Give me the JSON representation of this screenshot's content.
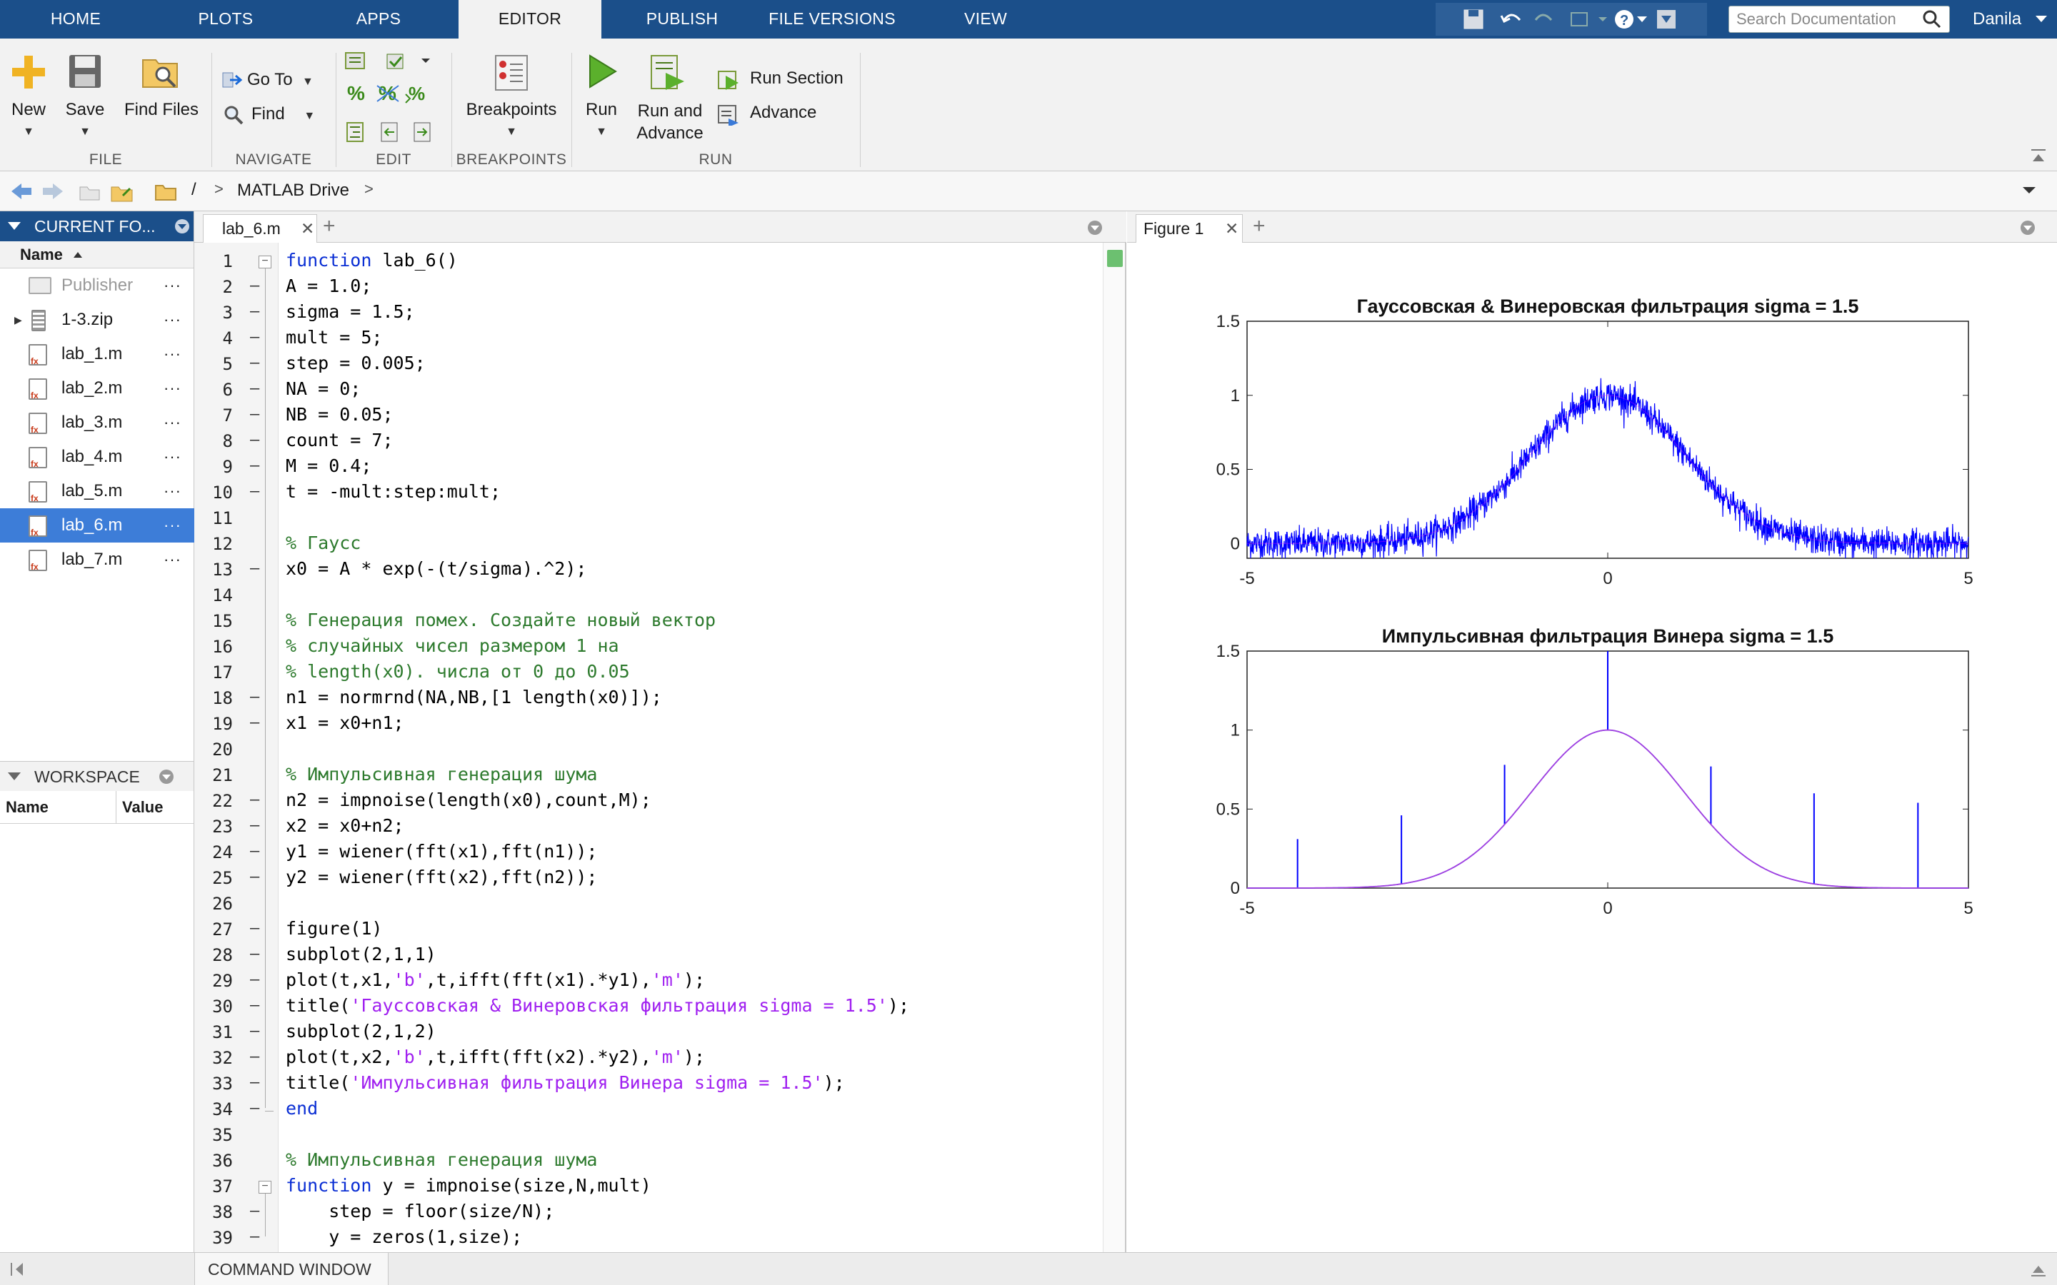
{
  "top_tabs": [
    "HOME",
    "PLOTS",
    "APPS",
    "EDITOR",
    "PUBLISH",
    "FILE VERSIONS",
    "VIEW"
  ],
  "search": {
    "placeholder": "Search Documentation"
  },
  "user": "Danila",
  "ribbon": {
    "file": {
      "new": "New",
      "save": "Save",
      "find_files": "Find Files",
      "label": "FILE"
    },
    "navigate": {
      "goto": "Go To",
      "find": "Find",
      "label": "NAVIGATE"
    },
    "edit": {
      "label": "EDIT"
    },
    "breakpoints": {
      "btn": "Breakpoints",
      "label": "BREAKPOINTS"
    },
    "run": {
      "run": "Run",
      "run_adv_1": "Run and",
      "run_adv_2": "Advance",
      "run_section": "Run Section",
      "advance": "Advance",
      "label": "RUN"
    }
  },
  "address": {
    "root": "/",
    "sep": ">",
    "folder": "MATLAB Drive"
  },
  "current_folder": {
    "title": "CURRENT FO...",
    "col_name": "Name",
    "files": [
      {
        "name": "Publisher",
        "type": "folder"
      },
      {
        "name": "1-3.zip",
        "type": "zip"
      },
      {
        "name": "lab_1.m",
        "type": "m"
      },
      {
        "name": "lab_2.m",
        "type": "m"
      },
      {
        "name": "lab_3.m",
        "type": "m"
      },
      {
        "name": "lab_4.m",
        "type": "m"
      },
      {
        "name": "lab_5.m",
        "type": "m"
      },
      {
        "name": "lab_6.m",
        "type": "m",
        "selected": true
      },
      {
        "name": "lab_7.m",
        "type": "m"
      }
    ],
    "dots": "···"
  },
  "workspace": {
    "title": "WORKSPACE",
    "col_name": "Name",
    "col_value": "Value"
  },
  "editor": {
    "tab": "lab_6.m",
    "lines": [
      [
        [
          "kw",
          "function"
        ],
        [
          "",
          "lab_6()"
        ]
      ],
      [
        [
          "",
          "A = 1.0;"
        ]
      ],
      [
        [
          "",
          "sigma = 1.5;"
        ]
      ],
      [
        [
          "",
          "mult = 5;"
        ]
      ],
      [
        [
          "",
          "step = 0.005;"
        ]
      ],
      [
        [
          "",
          "NA = 0;"
        ]
      ],
      [
        [
          "",
          "NB = 0.05;"
        ]
      ],
      [
        [
          "",
          "count = 7;"
        ]
      ],
      [
        [
          "",
          "M = 0.4;"
        ]
      ],
      [
        [
          "",
          "t = -mult:step:mult;"
        ]
      ],
      [],
      [
        [
          "cm",
          "% Гаусс"
        ]
      ],
      [
        [
          "",
          "x0 = A * exp(-(t/sigma).^2);"
        ]
      ],
      [],
      [
        [
          "cm",
          "% Генерация помех. Создайте новый вектор"
        ]
      ],
      [
        [
          "cm",
          "% случайных чисел размером 1 на"
        ]
      ],
      [
        [
          "cm",
          "% length(x0). числа от 0 до 0.05"
        ]
      ],
      [
        [
          "",
          "n1 = normrnd(NA,NB,[1 length(x0)]);"
        ]
      ],
      [
        [
          "",
          "x1 = x0+n1;"
        ]
      ],
      [],
      [
        [
          "cm",
          "% Импульсивная генерация шума"
        ]
      ],
      [
        [
          "",
          "n2 = impnoise(length(x0),count,M);"
        ]
      ],
      [
        [
          "",
          "x2 = x0+n2;"
        ]
      ],
      [
        [
          "",
          "y1 = wiener(fft(x1),fft(n1));"
        ]
      ],
      [
        [
          "",
          "y2 = wiener(fft(x2),fft(n2));"
        ]
      ],
      [],
      [
        [
          "",
          "figure(1)"
        ]
      ],
      [
        [
          "",
          "subplot(2,1,1)"
        ]
      ],
      [
        [
          "",
          "plot(t,x1,"
        ],
        [
          "st",
          "'b'"
        ],
        [
          "",
          ",t,ifft(fft(x1).*y1),"
        ],
        [
          "st",
          "'m'"
        ],
        [
          "",
          ");"
        ]
      ],
      [
        [
          "",
          "title("
        ],
        [
          "st",
          "'Гауссовская & Винеровская фильтрация sigma = 1.5'"
        ],
        [
          "",
          ");"
        ]
      ],
      [
        [
          "",
          "subplot(2,1,2)"
        ]
      ],
      [
        [
          "",
          "plot(t,x2,"
        ],
        [
          "st",
          "'b'"
        ],
        [
          "",
          ",t,ifft(fft(x2).*y2),"
        ],
        [
          "st",
          "'m'"
        ],
        [
          "",
          ");"
        ]
      ],
      [
        [
          "",
          "title("
        ],
        [
          "st",
          "'Импульсивная фильтрация Винера sigma = 1.5'"
        ],
        [
          "",
          ");"
        ]
      ],
      [
        [
          "kw",
          "end"
        ]
      ],
      [],
      [
        [
          "cm",
          "% Импульсивная генерация шума"
        ]
      ],
      [
        [
          "kw",
          "function"
        ],
        [
          "",
          "y = impnoise(size,N,mult)"
        ]
      ],
      [
        [
          "",
          "    step = floor(size/N);"
        ]
      ],
      [
        [
          "",
          "    y = zeros(1,size);"
        ]
      ]
    ],
    "dash_lines": [
      2,
      3,
      4,
      5,
      6,
      7,
      8,
      9,
      10,
      13,
      18,
      19,
      22,
      23,
      24,
      25,
      27,
      28,
      29,
      30,
      31,
      32,
      33,
      34,
      38,
      39
    ]
  },
  "figure": {
    "tab": "Figure 1"
  },
  "chart_data": [
    {
      "type": "line",
      "title": "Гауссовская & Винеровская фильтрация sigma = 1.5",
      "xlim": [
        -5,
        5
      ],
      "ylim": [
        -0.1,
        1.5
      ],
      "xticks": [
        "-5",
        "0",
        "5"
      ],
      "yticks": [
        "0",
        "0.5",
        "1",
        "1.5"
      ],
      "series": [
        {
          "color": "#0000ff",
          "description": "x0 + normal noise (NB=0.05)",
          "noise_std": 0.05
        },
        {
          "color": "#ff00ff",
          "description": "filtered ~ exp(-(t/1.5)^2)"
        }
      ]
    },
    {
      "type": "line",
      "title": "Импульсивная фильтрация Винера sigma = 1.5",
      "xlim": [
        -5,
        5
      ],
      "ylim": [
        0,
        1.5
      ],
      "xticks": [
        "-5",
        "0",
        "5"
      ],
      "yticks": [
        "0",
        "0.5",
        "1",
        "1.5"
      ],
      "impulses": [
        {
          "x": -4.3,
          "y": 0.31
        },
        {
          "x": -2.86,
          "y": 0.46
        },
        {
          "x": -1.43,
          "y": 0.78
        },
        {
          "x": 0.0,
          "y": 1.5
        },
        {
          "x": 1.43,
          "y": 0.77
        },
        {
          "x": 2.86,
          "y": 0.6
        },
        {
          "x": 4.3,
          "y": 0.54
        }
      ],
      "series": [
        {
          "color": "#a040e0",
          "description": "exp(-(t/1.5)^2)"
        }
      ]
    }
  ],
  "bottom": {
    "command_window": "COMMAND WINDOW"
  }
}
